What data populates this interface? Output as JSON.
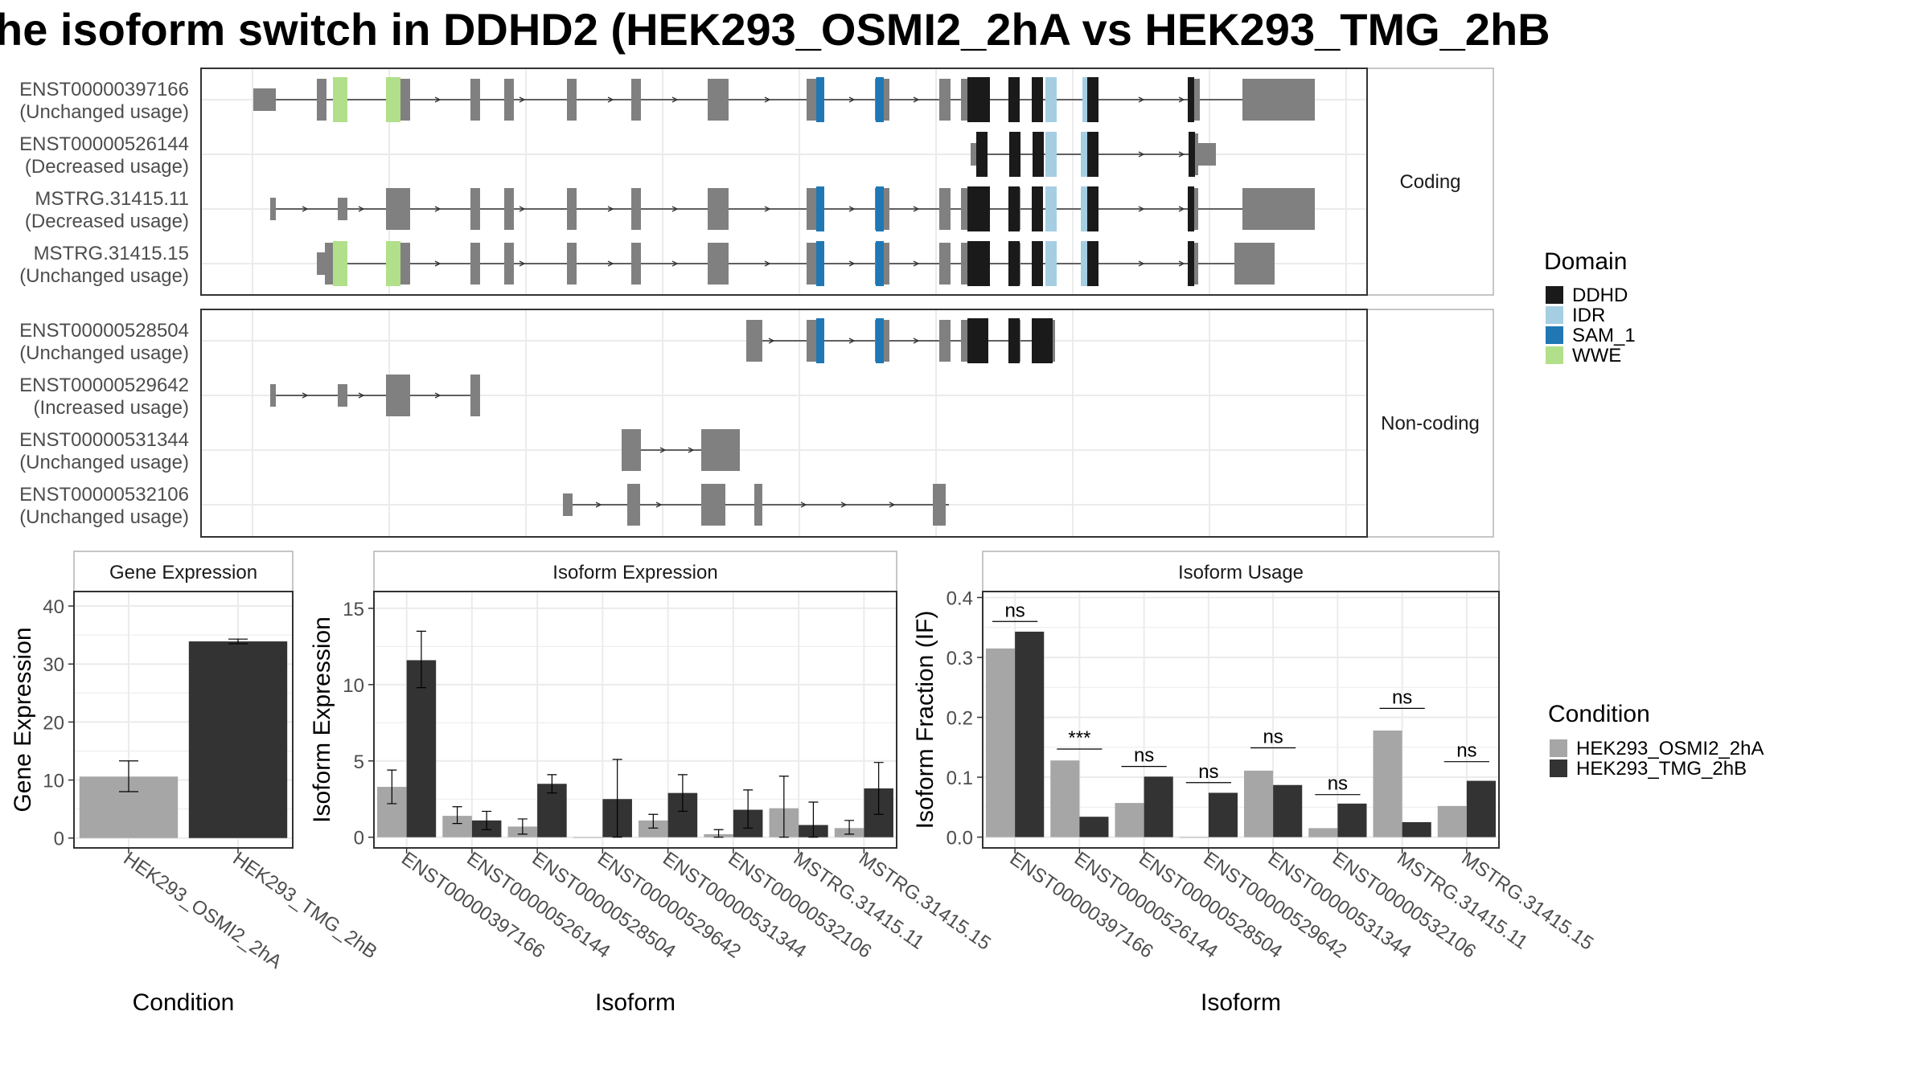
{
  "title": "he isoform switch in DDHD2 (HEK293_OSMI2_2hA vs HEK293_TMG_2hB",
  "colors": {
    "exon": "#808080",
    "condA": "#a6a6a6",
    "condB": "#333333",
    "DDHD": "#1a1a1a",
    "IDR": "#a6cee3",
    "SAM_1": "#1f78b4",
    "WWE": "#b2df8a",
    "grid": "#ebebeb",
    "panel_border": "#333333",
    "strip_border": "#b3b3b3"
  },
  "structure": {
    "facets": [
      "Coding",
      "Non-coding"
    ],
    "isoforms": [
      {
        "id": "ENST00000397166",
        "status": "(Unchanged usage)",
        "group": 0
      },
      {
        "id": "ENST00000526144",
        "status": "(Decreased usage)",
        "group": 0
      },
      {
        "id": "MSTRG.31415.11",
        "status": "(Decreased usage)",
        "group": 0
      },
      {
        "id": "MSTRG.31415.15",
        "status": "(Unchanged usage)",
        "group": 0
      },
      {
        "id": "ENST00000528504",
        "status": "(Unchanged usage)",
        "group": 1
      },
      {
        "id": "ENST00000529642",
        "status": "(Increased usage)",
        "group": 1
      },
      {
        "id": "ENST00000531344",
        "status": "(Unchanged usage)",
        "group": 1
      },
      {
        "id": "ENST00000532106",
        "status": "(Unchanged usage)",
        "group": 1
      }
    ],
    "domain_legend": {
      "title": "Domain",
      "items": [
        "DDHD",
        "IDR",
        "SAM_1",
        "WWE"
      ]
    }
  },
  "condition_legend": {
    "title": "Condition",
    "items": [
      "HEK293_OSMI2_2hA",
      "HEK293_TMG_2hB"
    ]
  },
  "chart_data": [
    {
      "type": "bar",
      "title": "Gene Expression",
      "xlabel": "Condition",
      "ylabel": "Gene Expression",
      "ylim": [
        -1.7,
        42.5
      ],
      "yticks": [
        0,
        10,
        20,
        30,
        40
      ],
      "categories": [
        "HEK293_OSMI2_2hA",
        "HEK293_TMG_2hB"
      ],
      "values": [
        10.6,
        33.9
      ],
      "errors": [
        [
          8.0,
          13.3
        ],
        [
          33.5,
          34.3
        ]
      ]
    },
    {
      "type": "bar",
      "title": "Isoform Expression",
      "xlabel": "Isoform",
      "ylabel": "Isoform Expression",
      "ylim": [
        -0.7,
        16.1
      ],
      "yticks": [
        0,
        5,
        10,
        15
      ],
      "categories": [
        "ENST00000397166",
        "ENST00000526144",
        "ENST00000528504",
        "ENST00000529642",
        "ENST00000531344",
        "ENST00000532106",
        "MSTRG.31415.11",
        "MSTRG.31415.15"
      ],
      "series": [
        {
          "name": "HEK293_OSMI2_2hA",
          "values": [
            3.3,
            1.4,
            0.7,
            0.0,
            1.1,
            0.2,
            1.9,
            0.6
          ],
          "errors": [
            [
              2.2,
              4.4
            ],
            [
              0.9,
              2.0
            ],
            [
              0.2,
              1.2
            ],
            [
              0.0,
              0.0
            ],
            [
              0.6,
              1.5
            ],
            [
              0.0,
              0.5
            ],
            [
              0.0,
              4.0
            ],
            [
              0.2,
              1.1
            ]
          ]
        },
        {
          "name": "HEK293_TMG_2hB",
          "values": [
            11.6,
            1.1,
            3.5,
            2.5,
            2.9,
            1.8,
            0.8,
            3.2
          ],
          "errors": [
            [
              9.8,
              13.5
            ],
            [
              0.5,
              1.7
            ],
            [
              2.9,
              4.1
            ],
            [
              0.0,
              5.1
            ],
            [
              1.7,
              4.1
            ],
            [
              0.6,
              3.1
            ],
            [
              0.0,
              2.3
            ],
            [
              1.5,
              4.9
            ]
          ]
        }
      ]
    },
    {
      "type": "bar",
      "title": "Isoform Usage",
      "xlabel": "Isoform",
      "ylabel": "Isoform Fraction (IF)",
      "ylim": [
        -0.018,
        0.41
      ],
      "yticks": [
        0.0,
        0.1,
        0.2,
        0.3,
        0.4
      ],
      "ytick_labels": [
        "0.0",
        "0.1",
        "0.2",
        "0.3",
        "0.4"
      ],
      "categories": [
        "ENST00000397166",
        "ENST00000526144",
        "ENST00000528504",
        "ENST00000529642",
        "ENST00000531344",
        "ENST00000532106",
        "MSTRG.31415.11",
        "MSTRG.31415.15"
      ],
      "series": [
        {
          "name": "HEK293_OSMI2_2hA",
          "values": [
            0.315,
            0.128,
            0.057,
            0.0,
            0.111,
            0.015,
            0.178,
            0.052
          ]
        },
        {
          "name": "HEK293_TMG_2hB",
          "values": [
            0.343,
            0.034,
            0.101,
            0.074,
            0.087,
            0.056,
            0.025,
            0.094
          ]
        }
      ],
      "significance": [
        "ns",
        "***",
        "ns",
        "ns",
        "ns",
        "ns",
        "ns",
        "ns"
      ],
      "sig_level": [
        0.36,
        0.147,
        0.118,
        0.091,
        0.149,
        0.071,
        0.215,
        0.126
      ]
    }
  ]
}
